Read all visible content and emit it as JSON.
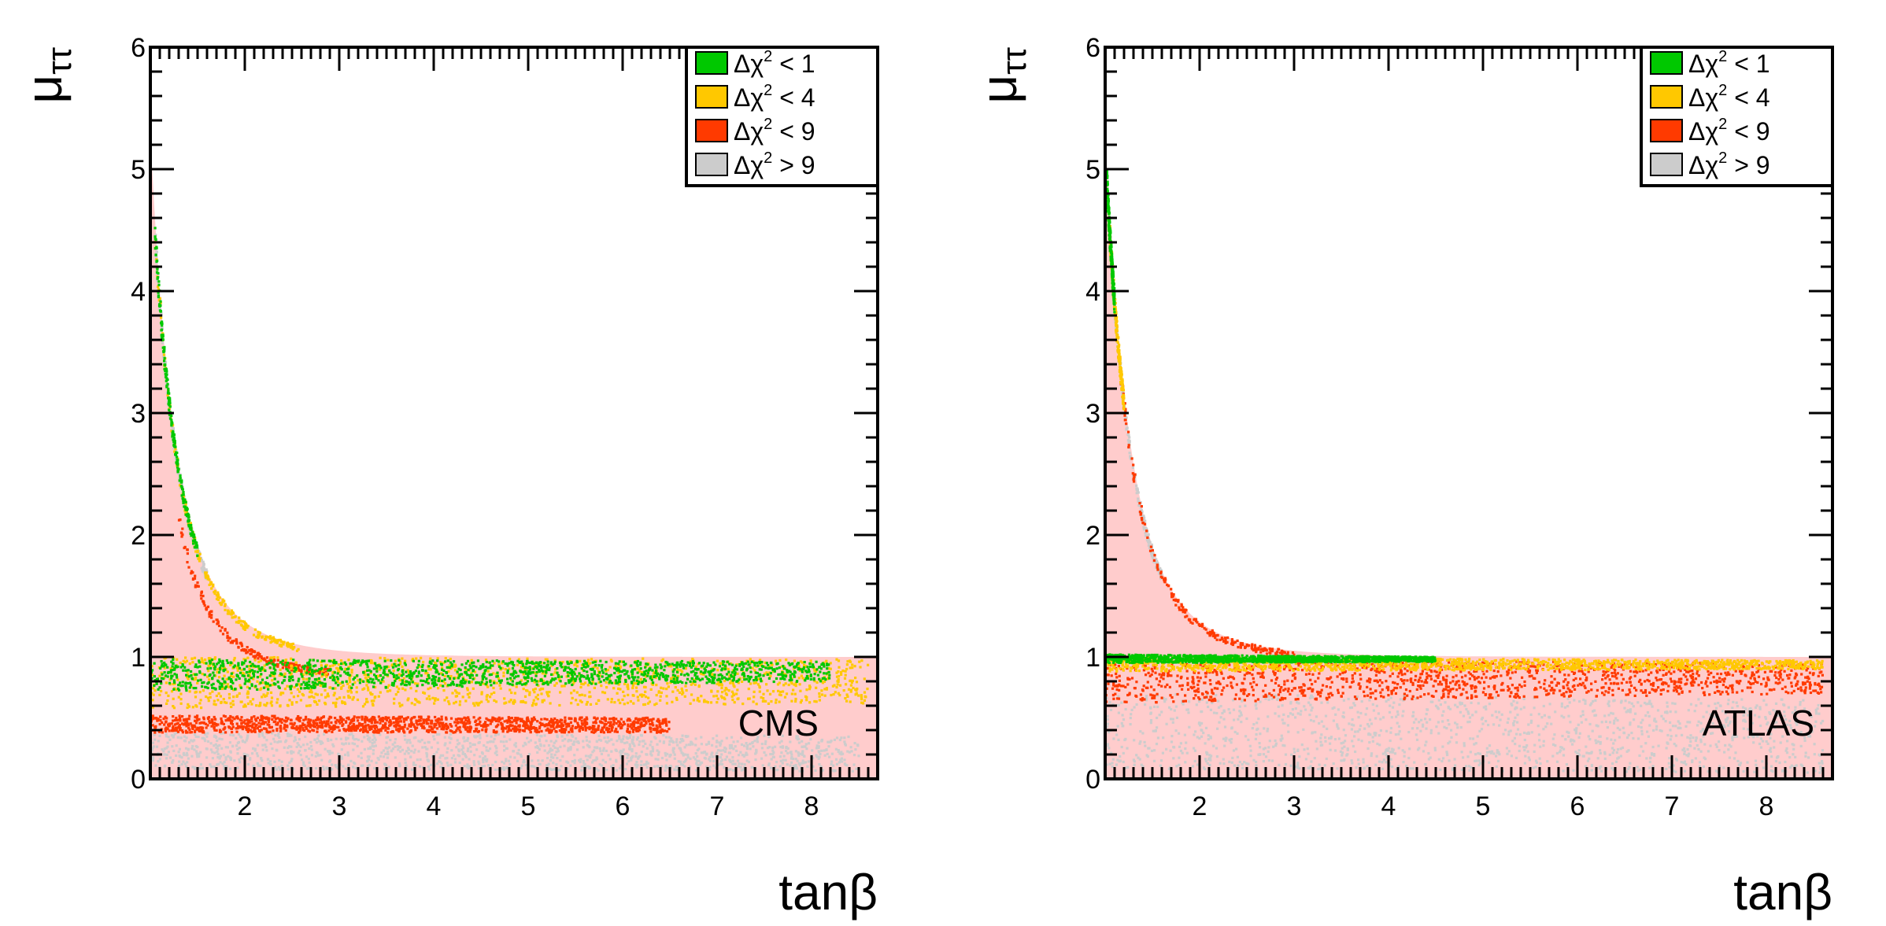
{
  "chart_data": [
    {
      "type": "scatter",
      "xlabel": "tanβ",
      "ylabel": {
        "base": "μ",
        "subscript": "ττ"
      },
      "xlim": [
        1,
        8.7
      ],
      "ylim": [
        0,
        6
      ],
      "xticks": [
        {
          "value": 2,
          "label": "2"
        },
        {
          "value": 3,
          "label": "3"
        },
        {
          "value": 4,
          "label": "4"
        },
        {
          "value": 5,
          "label": "5"
        },
        {
          "value": 6,
          "label": "6"
        },
        {
          "value": 7,
          "label": "7"
        },
        {
          "value": 8,
          "label": "8"
        }
      ],
      "yticks": [
        {
          "value": 0,
          "label": "0"
        },
        {
          "value": 1,
          "label": "1"
        },
        {
          "value": 2,
          "label": "2"
        },
        {
          "value": 3,
          "label": "3"
        },
        {
          "value": 4,
          "label": "4"
        },
        {
          "value": 5,
          "label": "5"
        },
        {
          "value": 6,
          "label": "6"
        }
      ],
      "annotation": "CMS",
      "grid": false,
      "legend_position": "top-right",
      "series": [
        {
          "name": "Δχ² < 1",
          "label": {
            "prefix": "Δχ",
            "sup": "2",
            "suffix": " < 1"
          },
          "color": "#00c800",
          "bands": [
            {
              "x": [
                1.0,
                8.2
              ],
              "y_lo": [
                0.72,
                0.8
              ],
              "y_hi": [
                0.98,
                0.96
              ]
            }
          ],
          "curve": {
            "x": [
              1.05,
              1.5
            ],
            "fraction": 1.0
          }
        },
        {
          "name": "Δχ² < 4",
          "label": {
            "prefix": "Δχ",
            "sup": "2",
            "suffix": " < 4"
          },
          "color": "#ffc800",
          "bands": [
            {
              "x": [
                1.0,
                8.6
              ],
              "y_lo": [
                0.58,
                0.62
              ],
              "y_hi": [
                1.0,
                0.98
              ]
            }
          ],
          "curve": {
            "x": [
              1.05,
              2.6
            ],
            "fraction": 1.0
          }
        },
        {
          "name": "Δχ² < 9",
          "label": {
            "prefix": "Δχ",
            "sup": "2",
            "suffix": " < 9"
          },
          "color": "#ff3a00",
          "bands": [
            {
              "x": [
                1.0,
                6.5
              ],
              "y_lo": [
                0.38,
                0.38
              ],
              "y_hi": [
                0.52,
                0.5
              ]
            }
          ],
          "curve": {
            "x": [
              1.3,
              2.9
            ],
            "fraction": 0.85
          }
        },
        {
          "name": "Δχ² > 9",
          "label": {
            "prefix": "Δχ",
            "sup": "2",
            "suffix": " > 9"
          },
          "color": "#cccccc",
          "bands": [
            {
              "x": [
                1.0,
                8.5
              ],
              "y_lo": [
                0.08,
                0.06
              ],
              "y_hi": [
                0.38,
                0.35
              ]
            }
          ],
          "curve": {
            "x": [
              1.05,
              1.6
            ],
            "fraction": 1.0
          }
        }
      ]
    },
    {
      "type": "scatter",
      "xlabel": "tanβ",
      "ylabel": {
        "base": "μ",
        "subscript": "ττ"
      },
      "xlim": [
        1,
        8.7
      ],
      "ylim": [
        0,
        6
      ],
      "xticks": [
        {
          "value": 2,
          "label": "2"
        },
        {
          "value": 3,
          "label": "3"
        },
        {
          "value": 4,
          "label": "4"
        },
        {
          "value": 5,
          "label": "5"
        },
        {
          "value": 6,
          "label": "6"
        },
        {
          "value": 7,
          "label": "7"
        },
        {
          "value": 8,
          "label": "8"
        }
      ],
      "yticks": [
        {
          "value": 0,
          "label": "0"
        },
        {
          "value": 1,
          "label": "1"
        },
        {
          "value": 2,
          "label": "2"
        },
        {
          "value": 3,
          "label": "3"
        },
        {
          "value": 4,
          "label": "4"
        },
        {
          "value": 5,
          "label": "5"
        },
        {
          "value": 6,
          "label": "6"
        }
      ],
      "annotation": "ATLAS",
      "grid": false,
      "legend_position": "top-right",
      "series": [
        {
          "name": "Δχ² < 1",
          "label": {
            "prefix": "Δχ",
            "sup": "2",
            "suffix": " < 1"
          },
          "color": "#00c800",
          "bands": [
            {
              "x": [
                1.0,
                4.5
              ],
              "y_lo": [
                0.95,
                0.96
              ],
              "y_hi": [
                1.02,
                1.0
              ]
            }
          ],
          "curve": {
            "x": [
              1.02,
              1.1
            ],
            "fraction": 1.0
          }
        },
        {
          "name": "Δχ² < 4",
          "label": {
            "prefix": "Δχ",
            "sup": "2",
            "suffix": " < 4"
          },
          "color": "#ffc800",
          "bands": [
            {
              "x": [
                1.0,
                8.6
              ],
              "y_lo": [
                0.88,
                0.9
              ],
              "y_hi": [
                1.0,
                0.97
              ]
            }
          ],
          "curve": {
            "x": [
              1.05,
              1.2
            ],
            "fraction": 1.0
          }
        },
        {
          "name": "Δχ² < 9",
          "label": {
            "prefix": "Δχ",
            "sup": "2",
            "suffix": " < 9"
          },
          "color": "#ff3a00",
          "bands": [
            {
              "x": [
                1.0,
                8.6
              ],
              "y_lo": [
                0.62,
                0.7
              ],
              "y_hi": [
                0.98,
                0.95
              ]
            }
          ],
          "curve": {
            "x": [
              1.05,
              3.0
            ],
            "fraction": 1.0
          }
        },
        {
          "name": "Δχ² > 9",
          "label": {
            "prefix": "Δχ",
            "sup": "2",
            "suffix": " > 9"
          },
          "color": "#cccccc",
          "bands": [
            {
              "x": [
                1.0,
                8.6
              ],
              "y_lo": [
                0.08,
                0.05
              ],
              "y_hi": [
                0.7,
                0.65
              ]
            }
          ],
          "curve": {
            "x": [
              1.05,
              1.6
            ],
            "fraction": 1.0
          }
        }
      ]
    }
  ]
}
